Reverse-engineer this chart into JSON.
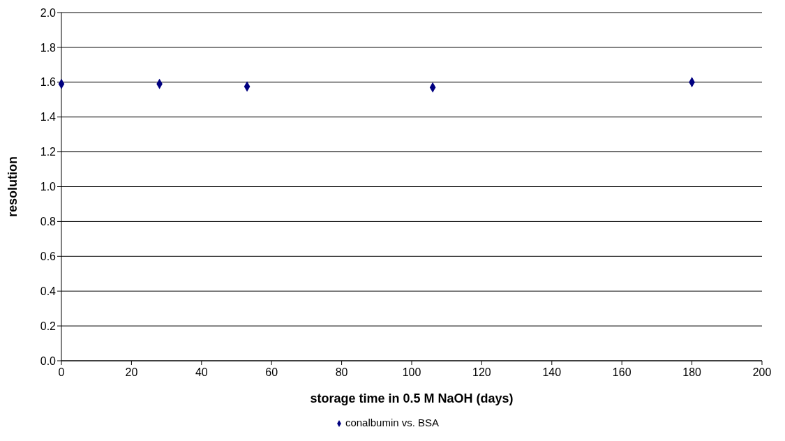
{
  "chart_data": {
    "type": "scatter",
    "xlabel": "storage time in 0.5 M NaOH (days)",
    "ylabel": "resolution",
    "x": [
      0,
      28,
      53,
      106,
      180
    ],
    "series": [
      {
        "name": "conalbumin vs. BSA",
        "color": "#000080",
        "values": [
          1.59,
          1.59,
          1.575,
          1.57,
          1.6
        ]
      }
    ],
    "xlim": [
      0,
      200
    ],
    "xticks": [
      0,
      20,
      40,
      60,
      80,
      100,
      120,
      140,
      160,
      180,
      200
    ],
    "ylim": [
      0,
      2
    ],
    "yticks": [
      {
        "value": 0,
        "label": "0.0"
      },
      {
        "value": 0.2,
        "label": "0.2"
      },
      {
        "value": 0.4,
        "label": "0.4"
      },
      {
        "value": 0.6,
        "label": "0.6"
      },
      {
        "value": 0.8,
        "label": "0.8"
      },
      {
        "value": 1,
        "label": "1.0"
      },
      {
        "value": 1.2,
        "label": "1.2"
      },
      {
        "value": 1.4,
        "label": "1.4"
      },
      {
        "value": 1.6,
        "label": "1.6"
      },
      {
        "value": 1.8,
        "label": "1.8"
      },
      {
        "value": 2,
        "label": "2.0"
      }
    ],
    "grid": "y",
    "legend": "bottom",
    "marker": "diamond"
  }
}
